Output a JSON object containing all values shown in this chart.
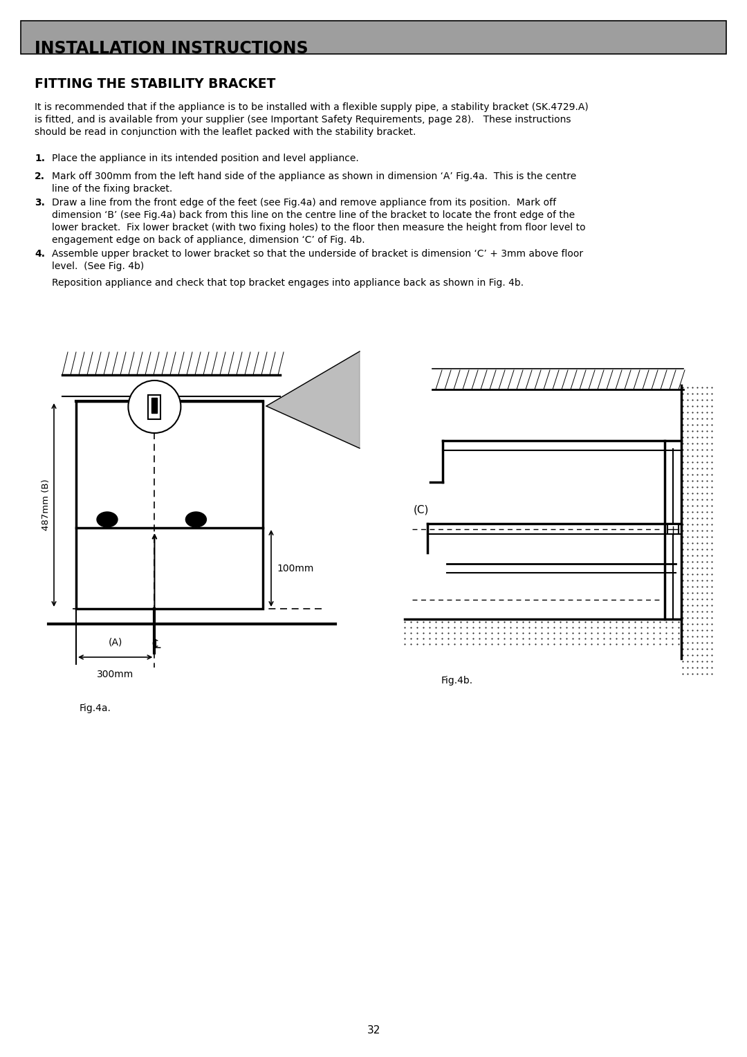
{
  "page_number": "32",
  "background_color": "#ffffff",
  "header_bg_color": "#9e9e9e",
  "header_text": "INSTALLATION INSTRUCTIONS",
  "header_text_color": "#000000",
  "section_title": "FITTING THE STABILITY BRACKET",
  "intro_text": "It is recommended that if the appliance is to be installed with a flexible supply pipe, a stability bracket (SK.4729.A)\nis fitted, and is available from your supplier (see Important Safety Requirements, page 28).   These instructions\nshould be read in conjunction with the leaflet packed with the stability bracket.",
  "steps": [
    "Place the appliance in its intended position and level appliance.",
    "Mark off 300mm from the left hand side of the appliance as shown in dimension ‘A’ Fig.4a.  This is the centre\nline of the fixing bracket.",
    "Draw a line from the front edge of the feet (see Fig.4a) and remove appliance from its position.  Mark off\ndimension ‘B’ (see Fig.4a) back from this line on the centre line of the bracket to locate the front edge of the\nlower bracket.  Fix lower bracket (with two fixing holes) to the floor then measure the height from floor level to\nengagement edge on back of appliance, dimension ‘C’ of Fig. 4b.",
    "Assemble upper bracket to lower bracket so that the underside of bracket is dimension ‘C’ + 3mm above floor\nlevel.  (See Fig. 4b)\n\nReposition appliance and check that top bracket engages into appliance back as shown in Fig. 4b."
  ],
  "fig4a_label": "Fig.4a.",
  "fig4b_label": "Fig.4b.",
  "dim_A_label": "(A)",
  "dim_B_label": "487mm (B)",
  "dim_300": "300mm",
  "dim_100": "100mm",
  "dim_C_label": "(C)"
}
